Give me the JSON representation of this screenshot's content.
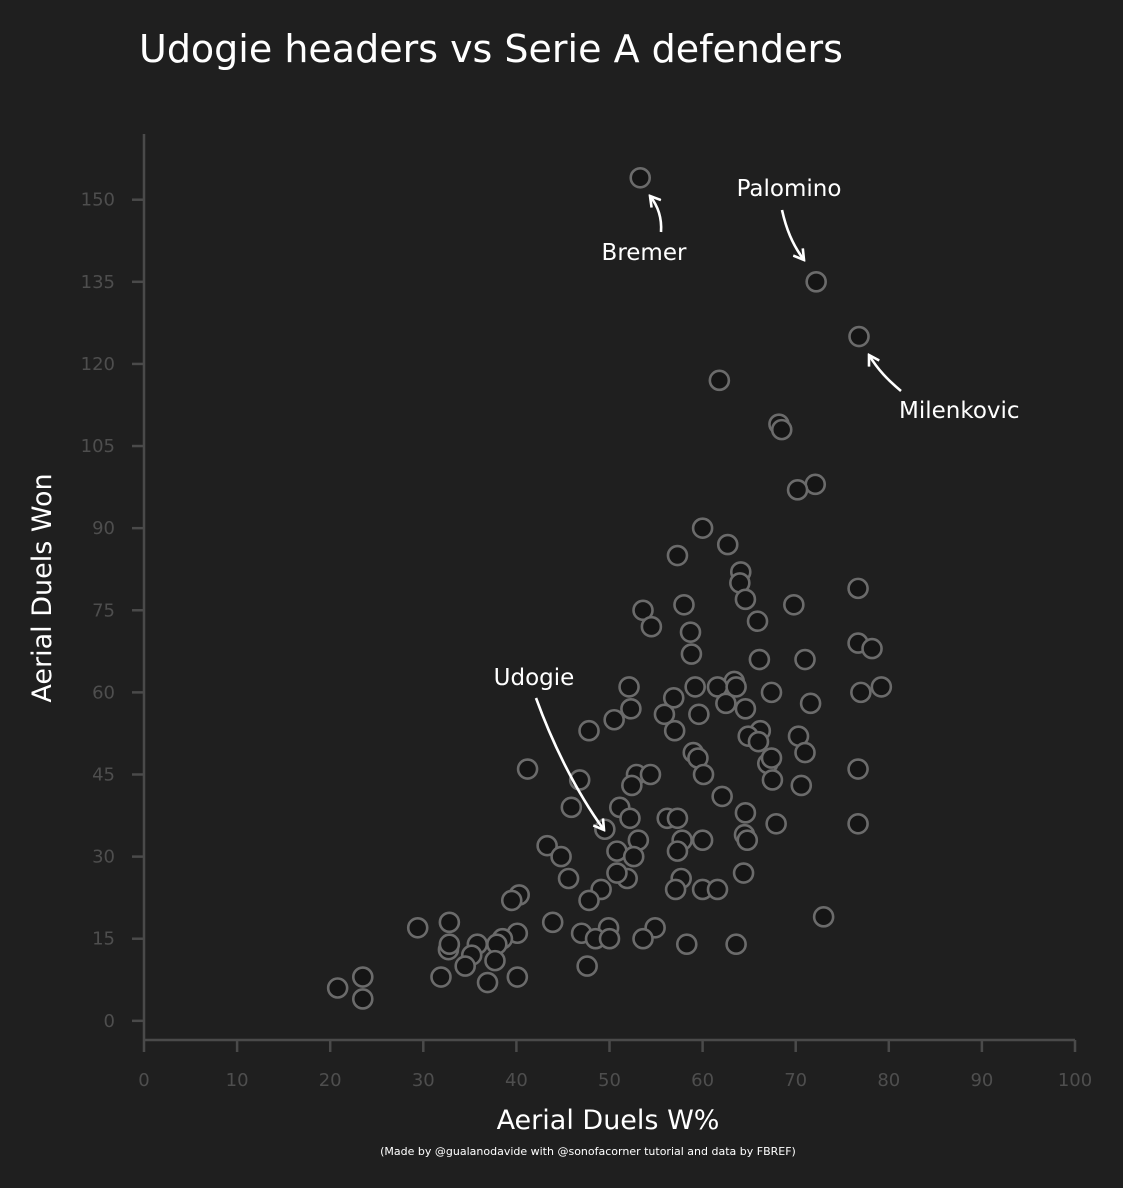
{
  "chart_data": {
    "type": "scatter",
    "title": "Udogie headers vs Serie A defenders",
    "xlabel": "Aerial Duels W%",
    "ylabel": "Aerial Duels Won",
    "credit": "(Made by @gualanodavide with @sonofacorner tutorial and data by FBREF)",
    "xlim": [
      0,
      100
    ],
    "ylim": [
      -3.5,
      162
    ],
    "xticks": [
      0,
      10,
      20,
      30,
      40,
      50,
      60,
      70,
      80,
      90,
      100
    ],
    "yticks": [
      0,
      15,
      30,
      45,
      60,
      75,
      90,
      105,
      120,
      135,
      150
    ],
    "grid": false,
    "colors": {
      "background": "#1f1f1f",
      "marker_fill": "#151515",
      "marker_edge": "#6b6b6b",
      "tick_label": "#4e4e4e"
    },
    "points": [
      [
        53.3,
        154
      ],
      [
        72.2,
        135
      ],
      [
        76.8,
        125
      ],
      [
        61.8,
        117
      ],
      [
        68.2,
        109
      ],
      [
        68.5,
        108
      ],
      [
        72.1,
        98
      ],
      [
        70.2,
        97
      ],
      [
        60.0,
        90
      ],
      [
        62.7,
        87
      ],
      [
        57.3,
        85
      ],
      [
        64.1,
        82
      ],
      [
        64.0,
        80
      ],
      [
        76.7,
        79
      ],
      [
        64.6,
        77
      ],
      [
        58.0,
        76
      ],
      [
        69.8,
        76
      ],
      [
        53.6,
        75
      ],
      [
        65.9,
        73
      ],
      [
        54.5,
        72
      ],
      [
        58.7,
        71
      ],
      [
        76.7,
        69
      ],
      [
        78.2,
        68
      ],
      [
        58.8,
        67
      ],
      [
        66.1,
        66
      ],
      [
        71.0,
        66
      ],
      [
        63.4,
        62
      ],
      [
        52.1,
        61
      ],
      [
        59.2,
        61
      ],
      [
        61.6,
        61
      ],
      [
        63.6,
        61
      ],
      [
        79.2,
        61
      ],
      [
        67.4,
        60
      ],
      [
        77.0,
        60
      ],
      [
        56.9,
        59
      ],
      [
        62.5,
        58
      ],
      [
        71.6,
        58
      ],
      [
        52.3,
        57
      ],
      [
        64.6,
        57
      ],
      [
        55.9,
        56
      ],
      [
        59.6,
        56
      ],
      [
        50.5,
        55
      ],
      [
        57.0,
        53
      ],
      [
        47.8,
        53
      ],
      [
        66.2,
        53
      ],
      [
        64.9,
        52
      ],
      [
        70.3,
        52
      ],
      [
        66.0,
        51
      ],
      [
        59.0,
        49
      ],
      [
        59.5,
        48
      ],
      [
        71.0,
        49
      ],
      [
        67.0,
        47
      ],
      [
        67.4,
        48
      ],
      [
        41.2,
        46
      ],
      [
        76.7,
        46
      ],
      [
        52.9,
        45
      ],
      [
        54.4,
        45
      ],
      [
        60.1,
        45
      ],
      [
        46.8,
        44
      ],
      [
        67.5,
        44
      ],
      [
        52.4,
        43
      ],
      [
        70.6,
        43
      ],
      [
        62.1,
        41
      ],
      [
        45.9,
        39
      ],
      [
        51.1,
        39
      ],
      [
        64.6,
        38
      ],
      [
        52.2,
        37
      ],
      [
        56.2,
        37
      ],
      [
        57.3,
        37
      ],
      [
        49.5,
        35
      ],
      [
        64.5,
        34
      ],
      [
        76.7,
        36
      ],
      [
        67.9,
        36
      ],
      [
        57.8,
        33
      ],
      [
        60.0,
        33
      ],
      [
        53.1,
        33
      ],
      [
        64.8,
        33
      ],
      [
        43.3,
        32
      ],
      [
        57.3,
        31
      ],
      [
        50.8,
        31
      ],
      [
        44.8,
        30
      ],
      [
        52.6,
        30
      ],
      [
        45.6,
        26
      ],
      [
        51.9,
        26
      ],
      [
        57.7,
        26
      ],
      [
        64.4,
        27
      ],
      [
        50.8,
        27
      ],
      [
        49.1,
        24
      ],
      [
        57.1,
        24
      ],
      [
        60.0,
        24
      ],
      [
        61.6,
        24
      ],
      [
        40.3,
        23
      ],
      [
        39.5,
        22
      ],
      [
        47.8,
        22
      ],
      [
        73.0,
        19
      ],
      [
        29.4,
        17
      ],
      [
        43.9,
        18
      ],
      [
        32.8,
        18
      ],
      [
        54.9,
        17
      ],
      [
        49.9,
        17
      ],
      [
        47.0,
        16
      ],
      [
        48.5,
        15
      ],
      [
        50.0,
        15
      ],
      [
        53.6,
        15
      ],
      [
        40.1,
        16
      ],
      [
        38.5,
        15
      ],
      [
        35.8,
        14
      ],
      [
        37.9,
        14
      ],
      [
        32.7,
        13
      ],
      [
        32.8,
        14
      ],
      [
        58.3,
        14
      ],
      [
        63.6,
        14
      ],
      [
        35.2,
        12
      ],
      [
        37.7,
        11
      ],
      [
        34.5,
        10
      ],
      [
        47.6,
        10
      ],
      [
        20.8,
        6
      ],
      [
        23.5,
        8
      ],
      [
        31.9,
        8
      ],
      [
        36.9,
        7
      ],
      [
        40.1,
        8
      ],
      [
        23.5,
        4
      ]
    ],
    "annotations": [
      {
        "text": "Bremer",
        "x": 54.0,
        "y": 154
      },
      {
        "text": "Palomino",
        "x": 72.2,
        "y": 135
      },
      {
        "text": "Milenkovic",
        "x": 76.8,
        "y": 125
      },
      {
        "text": "Udogie",
        "x": 49.5,
        "y": 35
      }
    ]
  }
}
